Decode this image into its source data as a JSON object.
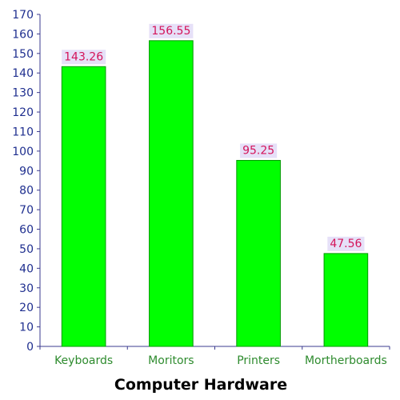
{
  "chart_data": {
    "type": "bar",
    "categories": [
      "Keyboards",
      "Moritors",
      "Printers",
      "Mortherboards"
    ],
    "values": [
      143.26,
      156.55,
      95.25,
      47.56
    ],
    "data_labels": [
      "143.26",
      "156.55",
      "95.25",
      "47.56"
    ],
    "title": "",
    "xlabel": "Computer Hardware",
    "ylabel": "",
    "ylim": [
      0,
      170
    ],
    "yticks": [
      "0",
      "10",
      "20",
      "30",
      "40",
      "50",
      "60",
      "70",
      "80",
      "90",
      "100",
      "110",
      "120",
      "130",
      "140",
      "150",
      "160",
      "170"
    ],
    "grid": false,
    "legend": "none"
  },
  "colors": {
    "bar_fill": "#00ff00",
    "bar_stroke": "#009900",
    "axis": "#3b3b8f",
    "y_tick_label": "#1f2f8f",
    "x_tick_label": "#2e8b2e",
    "data_label_text": "#d4145a",
    "data_label_bg": "#e6e0f8"
  }
}
